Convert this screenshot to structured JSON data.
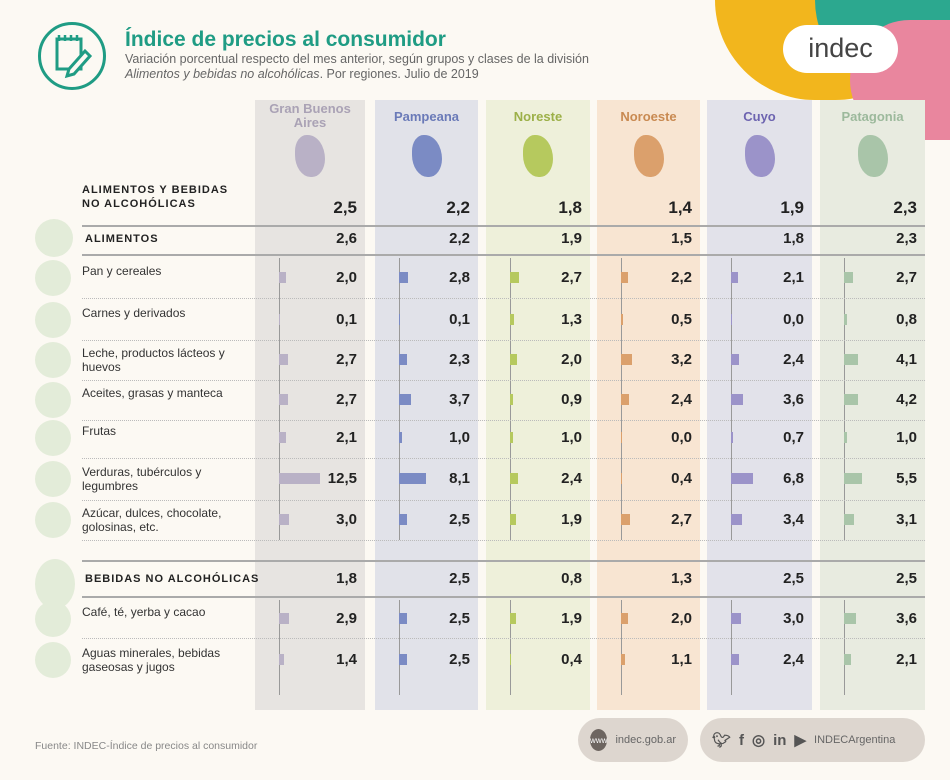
{
  "header": {
    "title": "Índice de precios al consumidor",
    "subtitle_line1": "Variación porcentual respecto del mes anterior, según grupos y clases de la división",
    "subtitle_italic": "Alimentos y bebidas no alcohólicas",
    "subtitle_rest": ". Por regiones. Julio de 2019",
    "brand": "indec"
  },
  "colors": {
    "title": "#1f9c84",
    "regions": {
      "bg": [
        "#e7e4e1",
        "#e1e2e9",
        "#eef0da",
        "#f8e5d2",
        "#e2e2ea",
        "#e8ebe0"
      ],
      "bar": [
        "#b9b1c6",
        "#7b8bc4",
        "#b6c95e",
        "#dba06c",
        "#9b93c9",
        "#a9c5a9"
      ],
      "head": [
        "#aaa2b5",
        "#6a7ab8",
        "#9cb048",
        "#c98a52",
        "#6d64b0",
        "#9cb99c"
      ]
    }
  },
  "chart_data": {
    "type": "table",
    "title": "Índice de precios al consumidor",
    "columns": [
      "Gran Buenos Aires",
      "Pampeana",
      "Noreste",
      "Noroeste",
      "Cuyo",
      "Patagonia"
    ],
    "rows": [
      {
        "label": "ALIMENTOS Y BEBIDAS NO ALCOHÓLICAS",
        "kind": "total",
        "values": [
          "2,5",
          "2,2",
          "1,8",
          "1,4",
          "1,9",
          "2,3"
        ]
      },
      {
        "label": "ALIMENTOS",
        "kind": "group",
        "icon": "food-basket-icon",
        "values": [
          "2,6",
          "2,2",
          "1,9",
          "1,5",
          "1,8",
          "2,3"
        ]
      },
      {
        "label": "Pan y cereales",
        "kind": "item",
        "icon": "bread-icon",
        "values": [
          "2,0",
          "2,8",
          "2,7",
          "2,2",
          "2,1",
          "2,7"
        ]
      },
      {
        "label": "Carnes y derivados",
        "kind": "item",
        "icon": "meat-icon",
        "values": [
          "0,1",
          "0,1",
          "1,3",
          "0,5",
          "0,0",
          "0,8"
        ]
      },
      {
        "label": "Leche, productos lácteos y huevos",
        "kind": "item",
        "icon": "milk-icon",
        "values": [
          "2,7",
          "2,3",
          "2,0",
          "3,2",
          "2,4",
          "4,1"
        ]
      },
      {
        "label": "Aceites, grasas y manteca",
        "kind": "item",
        "icon": "oil-icon",
        "values": [
          "2,7",
          "3,7",
          "0,9",
          "2,4",
          "3,6",
          "4,2"
        ]
      },
      {
        "label": "Frutas",
        "kind": "item",
        "icon": "banana-icon",
        "values": [
          "2,1",
          "1,0",
          "1,0",
          "0,0",
          "0,7",
          "1,0"
        ]
      },
      {
        "label": "Verduras, tubérculos y legumbres",
        "kind": "item",
        "icon": "vegetables-icon",
        "values": [
          "12,5",
          "8,1",
          "2,4",
          "0,4",
          "6,8",
          "5,5"
        ]
      },
      {
        "label": "Azúcar, dulces, chocolate, golosinas, etc.",
        "kind": "item",
        "icon": "candy-icon",
        "values": [
          "3,0",
          "2,5",
          "1,9",
          "2,7",
          "3,4",
          "3,1"
        ]
      },
      {
        "label": "BEBIDAS NO ALCOHÓLICAS",
        "kind": "group",
        "icon": "bottles-icon",
        "values": [
          "1,8",
          "2,5",
          "0,8",
          "1,3",
          "2,5",
          "2,5"
        ]
      },
      {
        "label": "Café, té, yerba y cacao",
        "kind": "item",
        "icon": "coffee-icon",
        "values": [
          "2,9",
          "2,5",
          "1,9",
          "2,0",
          "3,0",
          "3,6"
        ]
      },
      {
        "label": "Aguas minerales, bebidas gaseosas y jugos",
        "kind": "item",
        "icon": "water-bottle-icon",
        "values": [
          "1,4",
          "2,5",
          "0,4",
          "1,1",
          "2,4",
          "2,1"
        ]
      }
    ],
    "unit": "%"
  },
  "footer": {
    "source": "Fuente: INDEC-Índice de precios al consumidor",
    "website": "indec.gob.ar",
    "web_icon_label": "www",
    "social_handle": "INDECArgentina",
    "social_icons": [
      "twitter-icon",
      "facebook-icon",
      "instagram-icon",
      "linkedin-icon",
      "youtube-icon"
    ]
  }
}
